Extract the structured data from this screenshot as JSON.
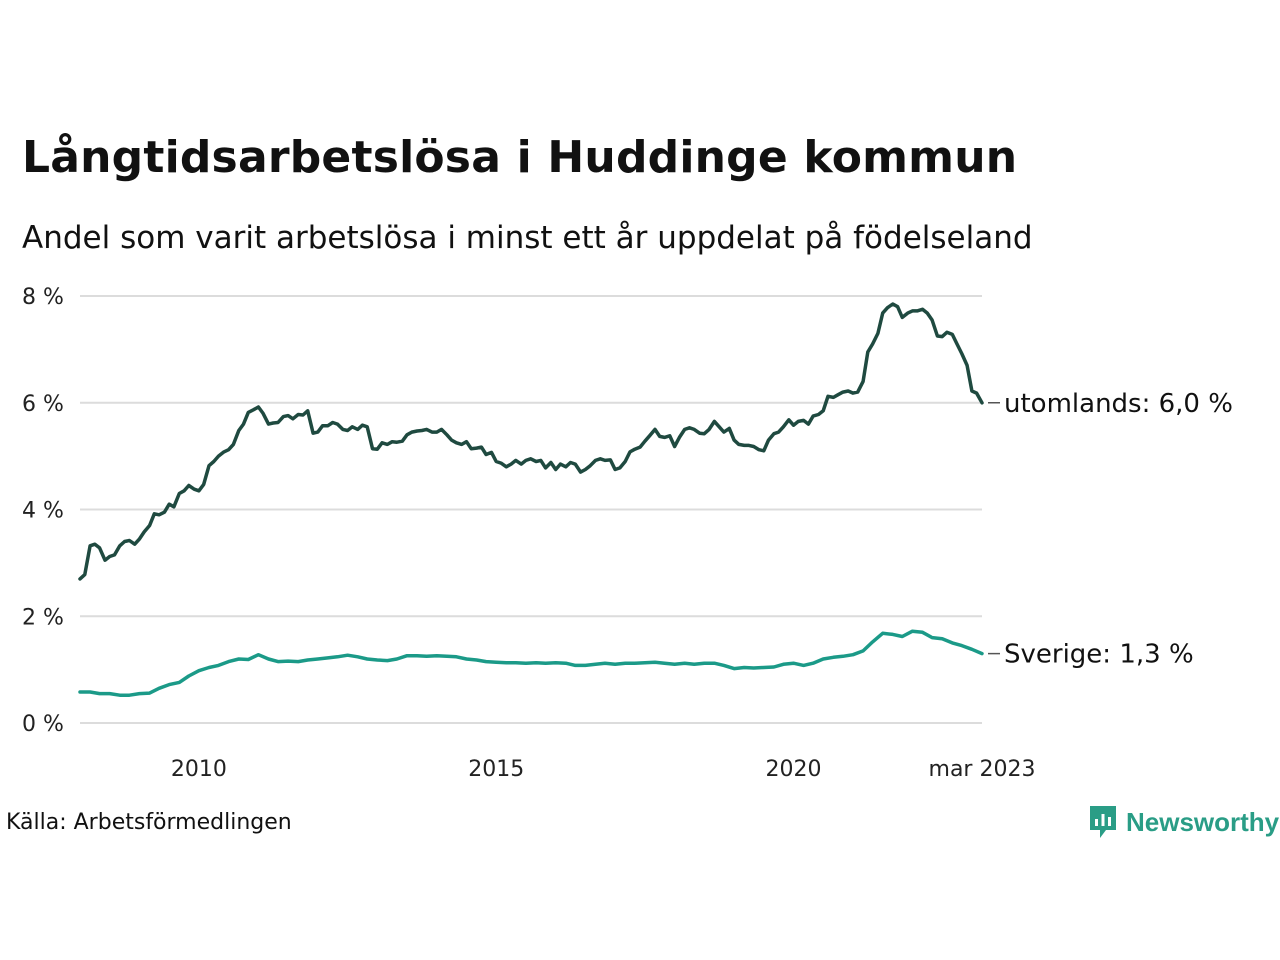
{
  "title": "Långtidsarbetslösa i Huddinge kommun",
  "subtitle": "Andel som varit arbetslösa i minst ett år uppdelat på födelseland",
  "source": "Källa: Arbetsförmedlingen",
  "brand": {
    "name": "Newsworthy",
    "color": "#2a9d86",
    "icon": "newsworthy-logo-icon"
  },
  "chart_data": {
    "type": "line",
    "title": "Långtidsarbetslösa i Huddinge kommun",
    "subtitle": "Andel som varit arbetslösa i minst ett år uppdelat på födelseland",
    "x_ticks": [
      {
        "label": "2010",
        "x": 2010
      },
      {
        "label": "2015",
        "x": 2015
      },
      {
        "label": "2020",
        "x": 2020
      },
      {
        "label": "mar 2023",
        "x": 2023.17
      }
    ],
    "y_ticks": [
      {
        "label": "0 %",
        "value": 0
      },
      {
        "label": "2 %",
        "value": 2
      },
      {
        "label": "4 %",
        "value": 4
      },
      {
        "label": "6 %",
        "value": 6
      },
      {
        "label": "8 %",
        "value": 8
      }
    ],
    "xlim": [
      2008,
      2023.17
    ],
    "ylim": [
      0,
      8
    ],
    "grid": true,
    "series": [
      {
        "name": "utomlands",
        "end_label": "utomlands: 6,0 %",
        "color": "#1f4a40",
        "points": [
          [
            2008.0,
            2.7
          ],
          [
            2008.08,
            2.78
          ],
          [
            2008.17,
            3.32
          ],
          [
            2008.25,
            3.35
          ],
          [
            2008.33,
            3.28
          ],
          [
            2008.42,
            3.05
          ],
          [
            2008.5,
            3.12
          ],
          [
            2008.58,
            3.15
          ],
          [
            2008.67,
            3.32
          ],
          [
            2008.75,
            3.4
          ],
          [
            2008.83,
            3.42
          ],
          [
            2008.92,
            3.35
          ],
          [
            2009.0,
            3.45
          ],
          [
            2009.08,
            3.58
          ],
          [
            2009.17,
            3.7
          ],
          [
            2009.25,
            3.92
          ],
          [
            2009.33,
            3.9
          ],
          [
            2009.42,
            3.95
          ],
          [
            2009.5,
            4.1
          ],
          [
            2009.58,
            4.05
          ],
          [
            2009.67,
            4.3
          ],
          [
            2009.75,
            4.35
          ],
          [
            2009.83,
            4.45
          ],
          [
            2009.92,
            4.38
          ],
          [
            2010.0,
            4.35
          ],
          [
            2010.08,
            4.47
          ],
          [
            2010.17,
            4.82
          ],
          [
            2010.25,
            4.9
          ],
          [
            2010.33,
            5.0
          ],
          [
            2010.42,
            5.08
          ],
          [
            2010.5,
            5.12
          ],
          [
            2010.58,
            5.22
          ],
          [
            2010.67,
            5.48
          ],
          [
            2010.75,
            5.6
          ],
          [
            2010.83,
            5.82
          ],
          [
            2010.92,
            5.87
          ],
          [
            2011.0,
            5.92
          ],
          [
            2011.08,
            5.8
          ],
          [
            2011.17,
            5.6
          ],
          [
            2011.25,
            5.62
          ],
          [
            2011.33,
            5.63
          ],
          [
            2011.42,
            5.74
          ],
          [
            2011.5,
            5.76
          ],
          [
            2011.58,
            5.7
          ],
          [
            2011.67,
            5.78
          ],
          [
            2011.75,
            5.77
          ],
          [
            2011.83,
            5.85
          ],
          [
            2011.92,
            5.43
          ],
          [
            2012.0,
            5.45
          ],
          [
            2012.08,
            5.57
          ],
          [
            2012.17,
            5.57
          ],
          [
            2012.25,
            5.63
          ],
          [
            2012.33,
            5.6
          ],
          [
            2012.42,
            5.5
          ],
          [
            2012.5,
            5.48
          ],
          [
            2012.58,
            5.55
          ],
          [
            2012.67,
            5.5
          ],
          [
            2012.75,
            5.58
          ],
          [
            2012.83,
            5.55
          ],
          [
            2012.92,
            5.14
          ],
          [
            2013.0,
            5.13
          ],
          [
            2013.08,
            5.25
          ],
          [
            2013.17,
            5.22
          ],
          [
            2013.25,
            5.27
          ],
          [
            2013.33,
            5.26
          ],
          [
            2013.42,
            5.28
          ],
          [
            2013.5,
            5.4
          ],
          [
            2013.58,
            5.45
          ],
          [
            2013.67,
            5.47
          ],
          [
            2013.75,
            5.48
          ],
          [
            2013.83,
            5.5
          ],
          [
            2013.92,
            5.45
          ],
          [
            2014.0,
            5.45
          ],
          [
            2014.08,
            5.5
          ],
          [
            2014.17,
            5.4
          ],
          [
            2014.25,
            5.3
          ],
          [
            2014.33,
            5.25
          ],
          [
            2014.42,
            5.22
          ],
          [
            2014.5,
            5.27
          ],
          [
            2014.58,
            5.14
          ],
          [
            2014.67,
            5.15
          ],
          [
            2014.75,
            5.17
          ],
          [
            2014.83,
            5.03
          ],
          [
            2014.92,
            5.07
          ],
          [
            2015.0,
            4.9
          ],
          [
            2015.08,
            4.87
          ],
          [
            2015.17,
            4.8
          ],
          [
            2015.25,
            4.85
          ],
          [
            2015.33,
            4.92
          ],
          [
            2015.42,
            4.85
          ],
          [
            2015.5,
            4.92
          ],
          [
            2015.58,
            4.95
          ],
          [
            2015.67,
            4.9
          ],
          [
            2015.75,
            4.92
          ],
          [
            2015.83,
            4.78
          ],
          [
            2015.92,
            4.88
          ],
          [
            2016.0,
            4.75
          ],
          [
            2016.08,
            4.85
          ],
          [
            2016.17,
            4.8
          ],
          [
            2016.25,
            4.88
          ],
          [
            2016.33,
            4.85
          ],
          [
            2016.42,
            4.7
          ],
          [
            2016.5,
            4.75
          ],
          [
            2016.58,
            4.82
          ],
          [
            2016.67,
            4.92
          ],
          [
            2016.75,
            4.95
          ],
          [
            2016.83,
            4.92
          ],
          [
            2016.92,
            4.93
          ],
          [
            2017.0,
            4.75
          ],
          [
            2017.08,
            4.78
          ],
          [
            2017.17,
            4.9
          ],
          [
            2017.25,
            5.08
          ],
          [
            2017.33,
            5.13
          ],
          [
            2017.42,
            5.17
          ],
          [
            2017.5,
            5.28
          ],
          [
            2017.58,
            5.38
          ],
          [
            2017.67,
            5.5
          ],
          [
            2017.75,
            5.37
          ],
          [
            2017.83,
            5.35
          ],
          [
            2017.92,
            5.38
          ],
          [
            2018.0,
            5.18
          ],
          [
            2018.08,
            5.35
          ],
          [
            2018.17,
            5.5
          ],
          [
            2018.25,
            5.53
          ],
          [
            2018.33,
            5.5
          ],
          [
            2018.42,
            5.43
          ],
          [
            2018.5,
            5.42
          ],
          [
            2018.58,
            5.5
          ],
          [
            2018.67,
            5.65
          ],
          [
            2018.75,
            5.55
          ],
          [
            2018.83,
            5.45
          ],
          [
            2018.92,
            5.52
          ],
          [
            2019.0,
            5.3
          ],
          [
            2019.08,
            5.22
          ],
          [
            2019.17,
            5.2
          ],
          [
            2019.25,
            5.2
          ],
          [
            2019.33,
            5.18
          ],
          [
            2019.42,
            5.12
          ],
          [
            2019.5,
            5.1
          ],
          [
            2019.58,
            5.3
          ],
          [
            2019.67,
            5.42
          ],
          [
            2019.75,
            5.45
          ],
          [
            2019.83,
            5.55
          ],
          [
            2019.92,
            5.68
          ],
          [
            2020.0,
            5.58
          ],
          [
            2020.08,
            5.65
          ],
          [
            2020.17,
            5.67
          ],
          [
            2020.25,
            5.6
          ],
          [
            2020.33,
            5.75
          ],
          [
            2020.42,
            5.78
          ],
          [
            2020.5,
            5.85
          ],
          [
            2020.58,
            6.12
          ],
          [
            2020.67,
            6.1
          ],
          [
            2020.75,
            6.15
          ],
          [
            2020.83,
            6.2
          ],
          [
            2020.92,
            6.22
          ],
          [
            2021.0,
            6.18
          ],
          [
            2021.08,
            6.2
          ],
          [
            2021.17,
            6.4
          ],
          [
            2021.25,
            6.95
          ],
          [
            2021.33,
            7.1
          ],
          [
            2021.42,
            7.3
          ],
          [
            2021.5,
            7.68
          ],
          [
            2021.58,
            7.78
          ],
          [
            2021.67,
            7.85
          ],
          [
            2021.75,
            7.8
          ],
          [
            2021.83,
            7.6
          ],
          [
            2021.92,
            7.68
          ],
          [
            2022.0,
            7.72
          ],
          [
            2022.08,
            7.72
          ],
          [
            2022.17,
            7.75
          ],
          [
            2022.25,
            7.68
          ],
          [
            2022.33,
            7.55
          ],
          [
            2022.42,
            7.25
          ],
          [
            2022.5,
            7.24
          ],
          [
            2022.58,
            7.32
          ],
          [
            2022.67,
            7.28
          ],
          [
            2022.75,
            7.1
          ],
          [
            2022.83,
            6.92
          ],
          [
            2022.92,
            6.7
          ],
          [
            2023.0,
            6.22
          ],
          [
            2023.08,
            6.18
          ],
          [
            2023.17,
            6.0
          ]
        ]
      },
      {
        "name": "Sverige",
        "end_label": "Sverige: 1,3 %",
        "color": "#1b9a88",
        "points": [
          [
            2008.0,
            0.58
          ],
          [
            2008.17,
            0.58
          ],
          [
            2008.33,
            0.55
          ],
          [
            2008.5,
            0.55
          ],
          [
            2008.67,
            0.52
          ],
          [
            2008.83,
            0.52
          ],
          [
            2009.0,
            0.55
          ],
          [
            2009.17,
            0.56
          ],
          [
            2009.33,
            0.65
          ],
          [
            2009.5,
            0.72
          ],
          [
            2009.67,
            0.76
          ],
          [
            2009.83,
            0.88
          ],
          [
            2010.0,
            0.98
          ],
          [
            2010.17,
            1.04
          ],
          [
            2010.33,
            1.08
          ],
          [
            2010.5,
            1.15
          ],
          [
            2010.67,
            1.2
          ],
          [
            2010.83,
            1.19
          ],
          [
            2011.0,
            1.28
          ],
          [
            2011.17,
            1.2
          ],
          [
            2011.33,
            1.15
          ],
          [
            2011.5,
            1.16
          ],
          [
            2011.67,
            1.15
          ],
          [
            2011.83,
            1.18
          ],
          [
            2012.0,
            1.2
          ],
          [
            2012.17,
            1.22
          ],
          [
            2012.33,
            1.24
          ],
          [
            2012.5,
            1.27
          ],
          [
            2012.67,
            1.24
          ],
          [
            2012.83,
            1.2
          ],
          [
            2013.0,
            1.18
          ],
          [
            2013.17,
            1.17
          ],
          [
            2013.33,
            1.2
          ],
          [
            2013.5,
            1.26
          ],
          [
            2013.67,
            1.26
          ],
          [
            2013.83,
            1.25
          ],
          [
            2014.0,
            1.26
          ],
          [
            2014.17,
            1.25
          ],
          [
            2014.33,
            1.24
          ],
          [
            2014.5,
            1.2
          ],
          [
            2014.67,
            1.18
          ],
          [
            2014.83,
            1.15
          ],
          [
            2015.0,
            1.14
          ],
          [
            2015.17,
            1.13
          ],
          [
            2015.33,
            1.13
          ],
          [
            2015.5,
            1.12
          ],
          [
            2015.67,
            1.13
          ],
          [
            2015.83,
            1.12
          ],
          [
            2016.0,
            1.13
          ],
          [
            2016.17,
            1.12
          ],
          [
            2016.33,
            1.08
          ],
          [
            2016.5,
            1.08
          ],
          [
            2016.67,
            1.1
          ],
          [
            2016.83,
            1.12
          ],
          [
            2017.0,
            1.1
          ],
          [
            2017.17,
            1.12
          ],
          [
            2017.33,
            1.12
          ],
          [
            2017.5,
            1.13
          ],
          [
            2017.67,
            1.14
          ],
          [
            2017.83,
            1.12
          ],
          [
            2018.0,
            1.1
          ],
          [
            2018.17,
            1.12
          ],
          [
            2018.33,
            1.1
          ],
          [
            2018.5,
            1.12
          ],
          [
            2018.67,
            1.12
          ],
          [
            2018.83,
            1.08
          ],
          [
            2019.0,
            1.02
          ],
          [
            2019.17,
            1.04
          ],
          [
            2019.33,
            1.03
          ],
          [
            2019.5,
            1.04
          ],
          [
            2019.67,
            1.05
          ],
          [
            2019.83,
            1.1
          ],
          [
            2020.0,
            1.12
          ],
          [
            2020.17,
            1.08
          ],
          [
            2020.33,
            1.12
          ],
          [
            2020.5,
            1.2
          ],
          [
            2020.67,
            1.23
          ],
          [
            2020.83,
            1.25
          ],
          [
            2021.0,
            1.28
          ],
          [
            2021.17,
            1.35
          ],
          [
            2021.33,
            1.52
          ],
          [
            2021.5,
            1.68
          ],
          [
            2021.67,
            1.66
          ],
          [
            2021.83,
            1.62
          ],
          [
            2022.0,
            1.72
          ],
          [
            2022.17,
            1.7
          ],
          [
            2022.33,
            1.6
          ],
          [
            2022.5,
            1.58
          ],
          [
            2022.67,
            1.5
          ],
          [
            2022.83,
            1.45
          ],
          [
            2023.0,
            1.38
          ],
          [
            2023.17,
            1.3
          ]
        ]
      }
    ]
  }
}
